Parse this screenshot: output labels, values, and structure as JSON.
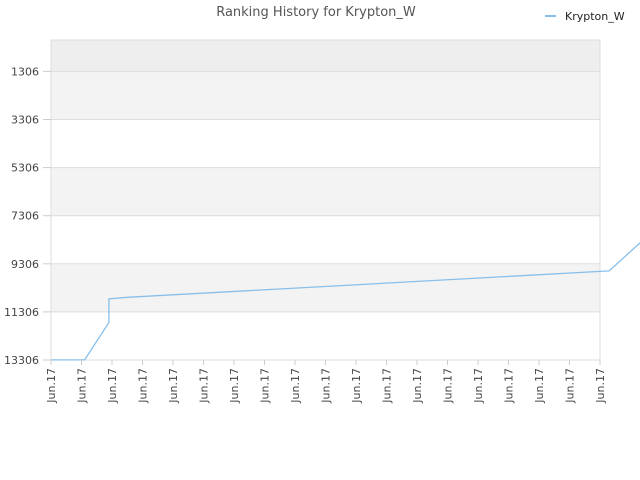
{
  "chart_data": {
    "type": "line",
    "title": "Ranking History for Krypton_W",
    "xlabel": "",
    "ylabel": "",
    "y_inverted": true,
    "ylim": [
      13306,
      0
    ],
    "y_ticks": [
      1306,
      3306,
      5306,
      7306,
      9306,
      11306,
      13306
    ],
    "x_tick_labels": [
      "Jun.17",
      "Jun.17",
      "Jun.17",
      "Jun.17",
      "Jun.17",
      "Jun.17",
      "Jun.17",
      "Jun.17",
      "Jun.17",
      "Jun.17",
      "Jun.17",
      "Jun.17",
      "Jun.17",
      "Jun.17",
      "Jun.17",
      "Jun.17",
      "Jun.17",
      "Jun.17",
      "Jun.17"
    ],
    "legend": {
      "position": "top-right"
    },
    "grid": true,
    "band_colors": [
      "#eeeeee",
      "#f3f3f3",
      "#ffffff"
    ],
    "series": [
      {
        "name": "Krypton_W",
        "color": "#88bfea",
        "x": [
          0,
          1.1,
          1.9,
          1.9,
          2.5,
          18.3,
          19.6
        ],
        "y": [
          13300,
          13300,
          11750,
          10760,
          10700,
          9600,
          8100
        ]
      }
    ]
  }
}
